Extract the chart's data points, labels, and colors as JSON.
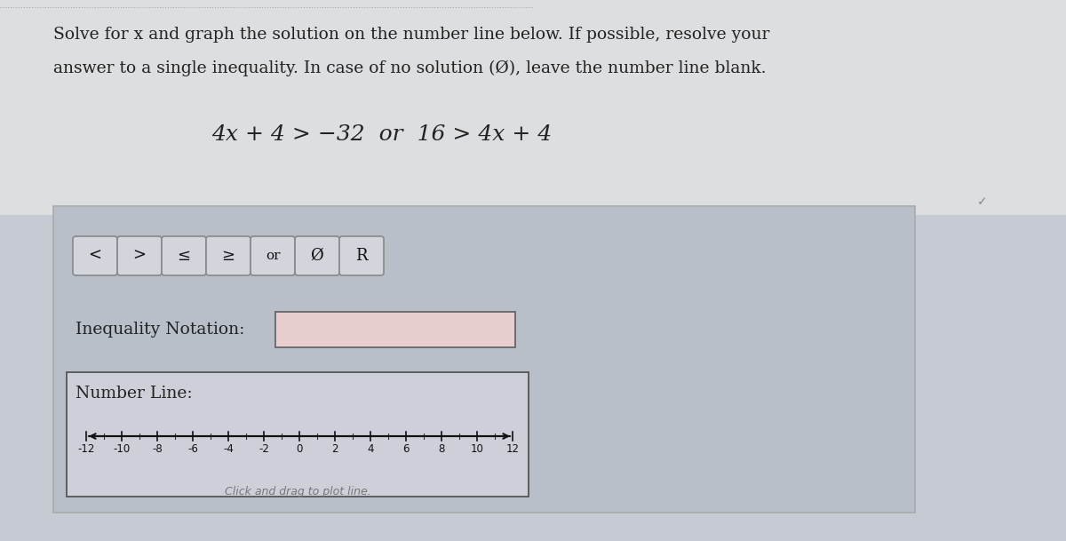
{
  "bg_outer": "#c5cad3",
  "bg_top": "#dddee0",
  "panel_bg": "#b8bfc9",
  "nl_box_bg": "#cdd0d8",
  "btn_bg": "#d2d5db",
  "btn_border": "#888888",
  "input_box_fill": "#e8cece",
  "input_box_border": "#666666",
  "nl_box_border": "#555555",
  "panel_border": "#aaaaaa",
  "text_color": "#222222",
  "caption_color": "#777777",
  "title_line1": "Solve for x and graph the solution on the number line below. If possible, resolve your",
  "title_line2": "answer to a single inequality. In case of no solution (Ø), leave the number line blank.",
  "eq_text": "4x + 4 > −32  or  16 > 4x + 4",
  "ineq_label": "Inequality Notation:",
  "nl_label": "Number Line:",
  "caption": "Click and drag to plot line.",
  "btn_labels": [
    "<",
    ">",
    "≤",
    "≥",
    "or",
    "Ø",
    "R"
  ],
  "tick_vals": [
    -12,
    -10,
    -8,
    -6,
    -4,
    -2,
    0,
    2,
    4,
    6,
    8,
    10,
    12
  ],
  "figw": 12.0,
  "figh": 6.09,
  "dpi": 100
}
